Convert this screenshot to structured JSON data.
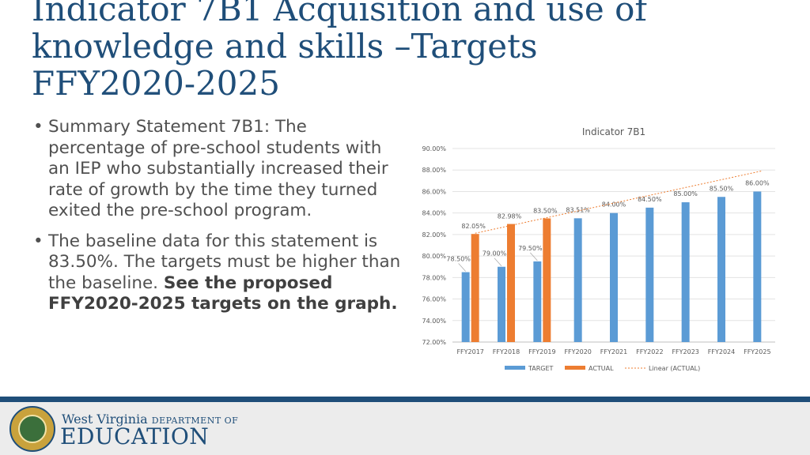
{
  "slide": {
    "title_lines": [
      "Indicator 7B1 Acquisition and use of",
      "knowledge and skills –Targets",
      "FFY2020-2025"
    ],
    "bullets": [
      {
        "text": "Summary Statement 7B1: The percentage of pre-school students with an IEP who substantially increased their rate of growth by the time they turned exited the pre-school program."
      },
      {
        "text": "The baseline data for this statement is 83.50%.  The targets must be higher than the baseline.",
        "emphasis": "See the proposed FFY2020-2025 targets on the graph."
      }
    ]
  },
  "footer": {
    "brand_top": "West Virginia",
    "brand_dept": "DEPARTMENT OF",
    "brand_main": "EDUCATION"
  },
  "chart_data": {
    "type": "bar",
    "title": "Indicator 7B1",
    "categories": [
      "FFY2017",
      "FFY2018",
      "FFY2019",
      "FFY2020",
      "FFY2021",
      "FFY2022",
      "FFY2023",
      "FFY2024",
      "FFY2025"
    ],
    "series": [
      {
        "name": "TARGET",
        "color": "#5b9bd5",
        "values": [
          78.5,
          79.0,
          79.5,
          83.51,
          84.0,
          84.5,
          85.0,
          85.5,
          86.0
        ],
        "labels": [
          "78.50%",
          "79.00%",
          "79.50%",
          "83.51%",
          "84.00%",
          "84.50%",
          "85.00%",
          "85.50%",
          "86.00%"
        ]
      },
      {
        "name": "ACTUAL",
        "color": "#ed7d31",
        "values": [
          82.05,
          82.98,
          83.5,
          null,
          null,
          null,
          null,
          null,
          null
        ],
        "labels": [
          "82.05%",
          "82.98%",
          "83.50%",
          null,
          null,
          null,
          null,
          null,
          null
        ]
      }
    ],
    "trendline": {
      "name": "Linear (ACTUAL)",
      "color": "#ed7d31"
    },
    "ylim": [
      72,
      90
    ],
    "yticks": [
      "72.00%",
      "74.00%",
      "76.00%",
      "78.00%",
      "80.00%",
      "82.00%",
      "84.00%",
      "86.00%",
      "88.00%",
      "90.00%"
    ],
    "grid": true,
    "legend": "bottom"
  }
}
